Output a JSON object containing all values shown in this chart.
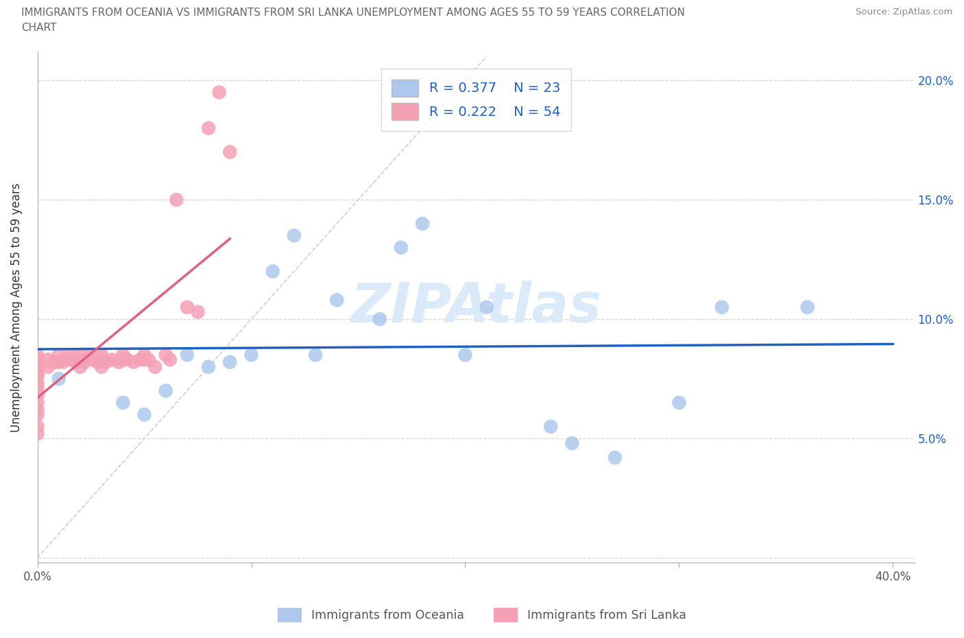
{
  "title_line1": "IMMIGRANTS FROM OCEANIA VS IMMIGRANTS FROM SRI LANKA UNEMPLOYMENT AMONG AGES 55 TO 59 YEARS CORRELATION",
  "title_line2": "CHART",
  "source": "Source: ZipAtlas.com",
  "ylabel": "Unemployment Among Ages 55 to 59 years",
  "xlim": [
    0.0,
    0.41
  ],
  "ylim": [
    -0.002,
    0.212
  ],
  "xtick_pos": [
    0.0,
    0.1,
    0.2,
    0.3,
    0.4
  ],
  "xtick_labels": [
    "0.0%",
    "",
    "",
    "",
    "40.0%"
  ],
  "ytick_pos": [
    0.0,
    0.05,
    0.1,
    0.15,
    0.2
  ],
  "ytick_labels": [
    "",
    "5.0%",
    "10.0%",
    "15.0%",
    "20.0%"
  ],
  "oceania_color": "#adc8ec",
  "srilanka_color": "#f4a0b5",
  "oceania_line_color": "#2060c0",
  "srilanka_line_color": "#e06080",
  "diagonal_color": "#d0d0d0",
  "watermark": "ZIPAtlas",
  "watermark_color": "#daeaf8",
  "oceania_R": 0.377,
  "oceania_N": 23,
  "srilanka_R": 0.222,
  "srilanka_N": 54,
  "oceania_x": [
    0.01,
    0.04,
    0.05,
    0.06,
    0.07,
    0.08,
    0.09,
    0.1,
    0.11,
    0.12,
    0.13,
    0.14,
    0.16,
    0.17,
    0.18,
    0.2,
    0.21,
    0.24,
    0.25,
    0.27,
    0.3,
    0.32,
    0.36
  ],
  "oceania_y": [
    0.075,
    0.065,
    0.06,
    0.07,
    0.085,
    0.08,
    0.082,
    0.085,
    0.12,
    0.135,
    0.085,
    0.108,
    0.1,
    0.13,
    0.14,
    0.085,
    0.105,
    0.055,
    0.048,
    0.042,
    0.065,
    0.105,
    0.105
  ],
  "srilanka_x": [
    0.0,
    0.0,
    0.0,
    0.0,
    0.0,
    0.0,
    0.0,
    0.0,
    0.0,
    0.0,
    0.0,
    0.0,
    0.0,
    0.0,
    0.0,
    0.005,
    0.005,
    0.008,
    0.01,
    0.01,
    0.012,
    0.015,
    0.015,
    0.018,
    0.02,
    0.02,
    0.02,
    0.022,
    0.025,
    0.025,
    0.028,
    0.03,
    0.03,
    0.03,
    0.032,
    0.035,
    0.038,
    0.04,
    0.04,
    0.042,
    0.045,
    0.048,
    0.05,
    0.05,
    0.052,
    0.055,
    0.06,
    0.062,
    0.065,
    0.07,
    0.075,
    0.08,
    0.085,
    0.09
  ],
  "srilanka_y": [
    0.085,
    0.083,
    0.082,
    0.08,
    0.079,
    0.077,
    0.076,
    0.073,
    0.071,
    0.068,
    0.065,
    0.062,
    0.06,
    0.055,
    0.052,
    0.083,
    0.08,
    0.082,
    0.085,
    0.082,
    0.082,
    0.085,
    0.083,
    0.082,
    0.085,
    0.083,
    0.08,
    0.082,
    0.085,
    0.083,
    0.082,
    0.085,
    0.083,
    0.08,
    0.082,
    0.083,
    0.082,
    0.085,
    0.083,
    0.083,
    0.082,
    0.083,
    0.085,
    0.083,
    0.083,
    0.08,
    0.085,
    0.083,
    0.15,
    0.105,
    0.103,
    0.18,
    0.195,
    0.17
  ]
}
